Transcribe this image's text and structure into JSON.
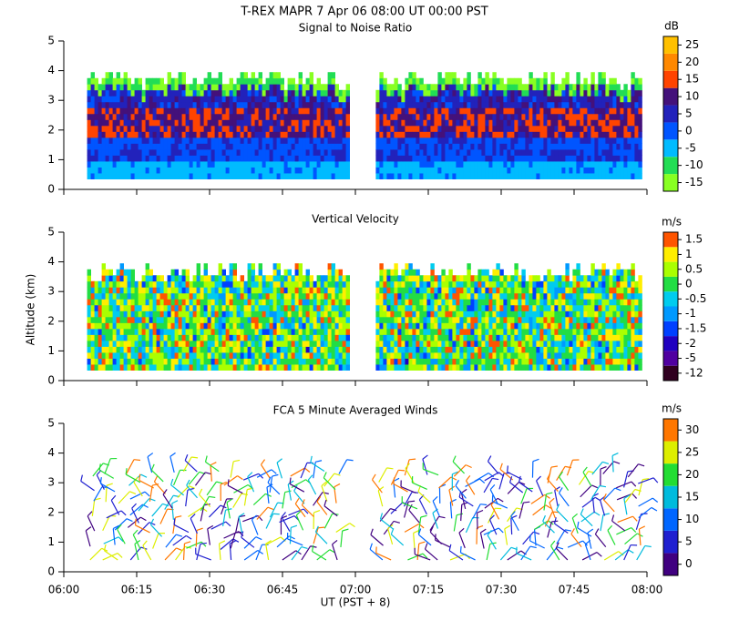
{
  "chart_data": [
    {
      "type": "heatmap",
      "title": "T-REX  MAPR  7 Apr 06  08:00 UT  00:00  PST",
      "subtitle": "Signal to Noise Ratio",
      "xlim": [
        6,
        8
      ],
      "xticks": [
        6,
        6.25,
        6.5,
        6.75,
        7,
        7.25,
        7.5,
        7.75,
        8
      ],
      "ylim": [
        0,
        5
      ],
      "yticks": [
        0,
        1,
        2,
        3,
        4,
        5
      ],
      "colorbar_label": "dB",
      "colorbar_ticks": [
        -15,
        -10,
        -5,
        0,
        5,
        10,
        15,
        20,
        25
      ],
      "colors": [
        "#88ff22",
        "#22dd55",
        "#00bbff",
        "#0055ff",
        "#2222bb",
        "#44117a",
        "#ff4400",
        "#ff8800",
        "#ffc000"
      ]
    },
    {
      "type": "heatmap",
      "subtitle": "Vertical Velocity",
      "y_label": "Altitude (km)",
      "xlim": [
        6,
        8
      ],
      "xticks": [
        6,
        6.25,
        6.5,
        6.75,
        7,
        7.25,
        7.5,
        7.75,
        8
      ],
      "ylim": [
        0,
        5
      ],
      "yticks": [
        0,
        1,
        2,
        3,
        4,
        5
      ],
      "colorbar_label": "m/s",
      "colorbar_ticks": [
        -12,
        -5,
        -2,
        -1.5,
        -1,
        -0.5,
        0,
        0.5,
        1,
        1.5
      ],
      "colors": [
        "#300020",
        "#5000a0",
        "#2000c0",
        "#0040ff",
        "#0099ff",
        "#00ccee",
        "#22dd44",
        "#aaff00",
        "#ffee00",
        "#ff5500"
      ]
    },
    {
      "type": "barbs",
      "subtitle": "FCA 5 Minute Averaged Winds",
      "x_label": "UT  (PST + 8)",
      "xlim": [
        6,
        8
      ],
      "xticks": [
        {
          "value": 6,
          "label": "06:00"
        },
        {
          "value": 6.25,
          "label": "06:15"
        },
        {
          "value": 6.5,
          "label": "06:30"
        },
        {
          "value": 6.75,
          "label": "06:45"
        },
        {
          "value": 7,
          "label": "07:00"
        },
        {
          "value": 7.25,
          "label": "07:15"
        },
        {
          "value": 7.5,
          "label": "07:30"
        },
        {
          "value": 7.75,
          "label": "07:45"
        },
        {
          "value": 8,
          "label": "08:00"
        }
      ],
      "ylim": [
        0,
        5
      ],
      "yticks": [
        0,
        1,
        2,
        3,
        4,
        5
      ],
      "colorbar_label": "m/s",
      "colorbar_ticks": [
        0,
        5,
        10,
        15,
        20,
        25,
        30
      ],
      "colors": [
        "#400080",
        "#2020d0",
        "#0066ff",
        "#00bbdd",
        "#22dd33",
        "#ddee00",
        "#ff7700"
      ]
    }
  ]
}
